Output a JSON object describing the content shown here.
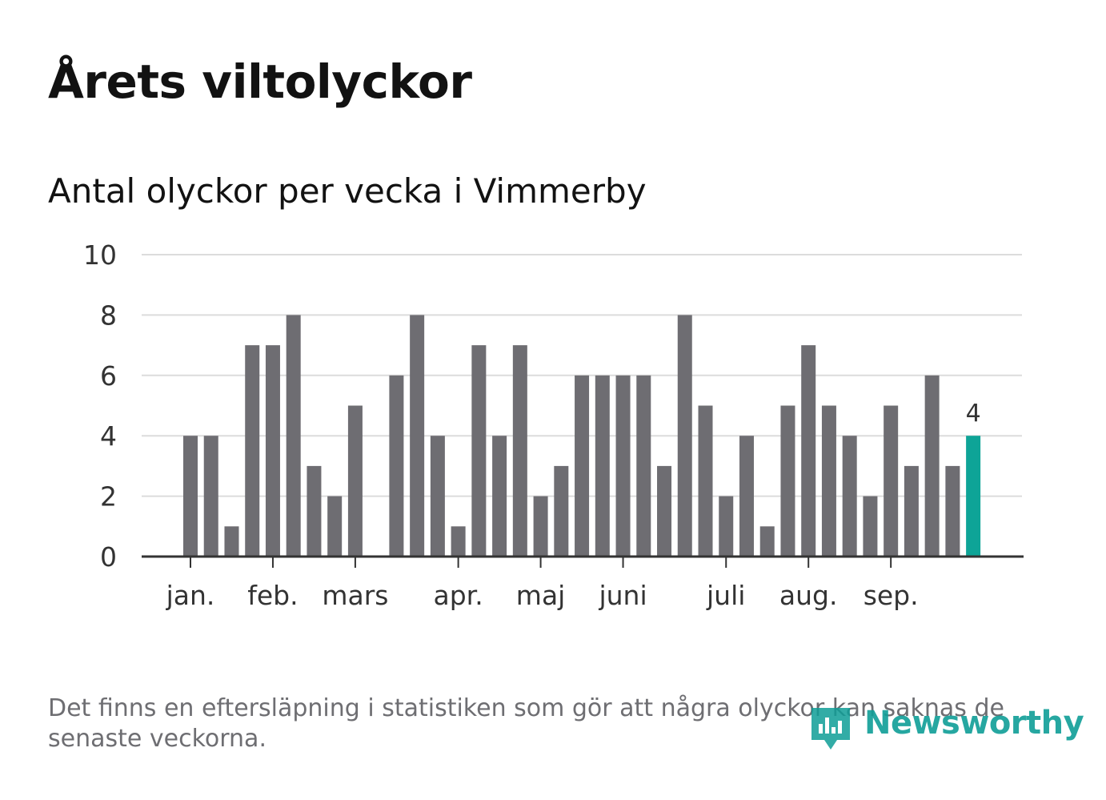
{
  "title": "Årets viltolyckor",
  "subtitle": "Antal olyckor per vecka i Vimmerby",
  "footnote": "Det finns en eftersläpning i statistiken som gör att några olyckor kan saknas de senaste veckorna.",
  "brand": {
    "name": "Newsworthy",
    "color": "#0f9e97"
  },
  "colors": {
    "bar": "#6e6d72",
    "highlight": "#0ea497",
    "grid": "#dcdcdc",
    "axis": "#333333",
    "text": "#333333"
  },
  "chart_data": {
    "type": "bar",
    "title": "Antal olyckor per vecka i Vimmerby",
    "xlabel": "",
    "ylabel": "",
    "ylim": [
      0,
      10
    ],
    "yticks": [
      "0",
      "2",
      "4",
      "6",
      "8",
      "10"
    ],
    "grid": true,
    "weeks": [
      1,
      2,
      3,
      4,
      5,
      6,
      7,
      8,
      9,
      10,
      11,
      12,
      13,
      14,
      15,
      16,
      17,
      18,
      19,
      20,
      21,
      22,
      23,
      24,
      25,
      26,
      27,
      28,
      29,
      30,
      31,
      32,
      33,
      34,
      35,
      36,
      37,
      38,
      39
    ],
    "values": [
      4,
      4,
      1,
      7,
      7,
      8,
      3,
      2,
      5,
      0,
      6,
      8,
      4,
      1,
      7,
      4,
      7,
      2,
      3,
      6,
      6,
      6,
      6,
      3,
      8,
      5,
      2,
      4,
      1,
      5,
      7,
      5,
      4,
      2,
      5,
      3,
      6,
      3,
      4
    ],
    "month_labels": [
      {
        "label": "jan.",
        "week": 1
      },
      {
        "label": "feb.",
        "week": 5
      },
      {
        "label": "mars",
        "week": 9
      },
      {
        "label": "apr.",
        "week": 14
      },
      {
        "label": "maj",
        "week": 18
      },
      {
        "label": "juni",
        "week": 22
      },
      {
        "label": "juli",
        "week": 27
      },
      {
        "label": "aug.",
        "week": 31
      },
      {
        "label": "sep.",
        "week": 35
      }
    ],
    "highlight_index": 38,
    "highlight_label": "4"
  }
}
